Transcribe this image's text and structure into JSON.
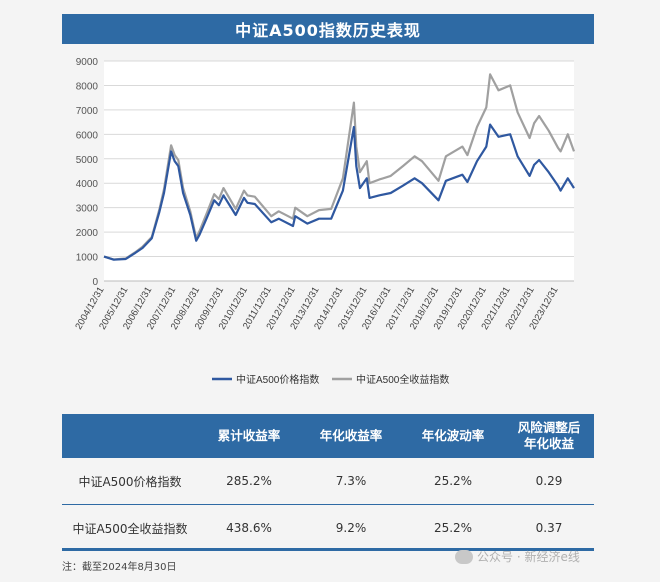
{
  "title": "中证A500指数历史表现",
  "chart_data": {
    "type": "line",
    "y_ticks": [
      "9000",
      "8000",
      "7000",
      "6000",
      "5000",
      "4000",
      "3000",
      "2000",
      "1000",
      "0"
    ],
    "ylim": [
      0,
      9000
    ],
    "grid": true,
    "legend_position": "bottom",
    "categories": [
      "2004/12/31",
      "2005/12/31",
      "2006/12/31",
      "2007/12/31",
      "2008/12/31",
      "2009/12/31",
      "2010/12/31",
      "2011/12/31",
      "2012/12/31",
      "2013/12/31",
      "2014/12/31",
      "2015/12/31",
      "2016/12/31",
      "2017/12/31",
      "2018/12/31",
      "2019/12/31",
      "2020/12/31",
      "2021/12/31",
      "2022/12/31",
      "2023/12/31"
    ],
    "x_span": [
      2004.99,
      2024.66
    ],
    "series": [
      {
        "name": "中证A500价格指数",
        "color": "#2f58a0",
        "points": [
          [
            2004.99,
            1000
          ],
          [
            2005.4,
            870
          ],
          [
            2005.9,
            900
          ],
          [
            2006.3,
            1150
          ],
          [
            2006.6,
            1350
          ],
          [
            2006.99,
            1750
          ],
          [
            2007.3,
            2800
          ],
          [
            2007.5,
            3600
          ],
          [
            2007.8,
            5300
          ],
          [
            2007.95,
            4900
          ],
          [
            2008.1,
            4700
          ],
          [
            2008.3,
            3600
          ],
          [
            2008.6,
            2700
          ],
          [
            2008.85,
            1650
          ],
          [
            2008.99,
            1900
          ],
          [
            2009.3,
            2600
          ],
          [
            2009.6,
            3300
          ],
          [
            2009.8,
            3100
          ],
          [
            2009.99,
            3500
          ],
          [
            2010.5,
            2700
          ],
          [
            2010.85,
            3400
          ],
          [
            2010.99,
            3200
          ],
          [
            2011.3,
            3150
          ],
          [
            2011.99,
            2400
          ],
          [
            2012.3,
            2550
          ],
          [
            2012.9,
            2250
          ],
          [
            2012.99,
            2650
          ],
          [
            2013.5,
            2350
          ],
          [
            2013.99,
            2550
          ],
          [
            2014.5,
            2550
          ],
          [
            2014.99,
            3700
          ],
          [
            2015.45,
            6300
          ],
          [
            2015.55,
            4700
          ],
          [
            2015.7,
            3800
          ],
          [
            2015.99,
            4200
          ],
          [
            2016.1,
            3400
          ],
          [
            2016.5,
            3500
          ],
          [
            2016.99,
            3600
          ],
          [
            2017.5,
            3900
          ],
          [
            2017.99,
            4200
          ],
          [
            2018.3,
            4000
          ],
          [
            2018.99,
            3300
          ],
          [
            2019.3,
            4100
          ],
          [
            2019.99,
            4350
          ],
          [
            2020.2,
            4050
          ],
          [
            2020.6,
            4900
          ],
          [
            2020.99,
            5500
          ],
          [
            2021.15,
            6400
          ],
          [
            2021.5,
            5900
          ],
          [
            2021.99,
            6000
          ],
          [
            2022.3,
            5100
          ],
          [
            2022.8,
            4300
          ],
          [
            2022.99,
            4750
          ],
          [
            2023.2,
            4950
          ],
          [
            2023.6,
            4450
          ],
          [
            2023.99,
            3900
          ],
          [
            2024.1,
            3700
          ],
          [
            2024.4,
            4200
          ],
          [
            2024.66,
            3800
          ]
        ]
      },
      {
        "name": "中证A500全收益指数",
        "color": "#a0a0a0",
        "points": [
          [
            2004.99,
            1000
          ],
          [
            2005.4,
            880
          ],
          [
            2005.9,
            920
          ],
          [
            2006.3,
            1180
          ],
          [
            2006.6,
            1400
          ],
          [
            2006.99,
            1800
          ],
          [
            2007.3,
            2900
          ],
          [
            2007.5,
            3750
          ],
          [
            2007.8,
            5550
          ],
          [
            2007.95,
            5150
          ],
          [
            2008.1,
            4950
          ],
          [
            2008.3,
            3800
          ],
          [
            2008.6,
            2850
          ],
          [
            2008.85,
            1750
          ],
          [
            2008.99,
            2050
          ],
          [
            2009.3,
            2800
          ],
          [
            2009.6,
            3550
          ],
          [
            2009.8,
            3350
          ],
          [
            2009.99,
            3800
          ],
          [
            2010.5,
            2950
          ],
          [
            2010.85,
            3700
          ],
          [
            2010.99,
            3500
          ],
          [
            2011.3,
            3450
          ],
          [
            2011.99,
            2650
          ],
          [
            2012.3,
            2850
          ],
          [
            2012.9,
            2550
          ],
          [
            2012.99,
            3000
          ],
          [
            2013.5,
            2650
          ],
          [
            2013.99,
            2900
          ],
          [
            2014.5,
            2950
          ],
          [
            2014.99,
            4200
          ],
          [
            2015.45,
            7300
          ],
          [
            2015.55,
            5500
          ],
          [
            2015.7,
            4450
          ],
          [
            2015.99,
            4900
          ],
          [
            2016.1,
            4000
          ],
          [
            2016.5,
            4150
          ],
          [
            2016.99,
            4300
          ],
          [
            2017.5,
            4700
          ],
          [
            2017.99,
            5100
          ],
          [
            2018.3,
            4900
          ],
          [
            2018.99,
            4100
          ],
          [
            2019.3,
            5100
          ],
          [
            2019.99,
            5500
          ],
          [
            2020.2,
            5150
          ],
          [
            2020.6,
            6300
          ],
          [
            2020.99,
            7100
          ],
          [
            2021.15,
            8450
          ],
          [
            2021.5,
            7800
          ],
          [
            2021.99,
            8000
          ],
          [
            2022.3,
            6900
          ],
          [
            2022.8,
            5850
          ],
          [
            2022.99,
            6450
          ],
          [
            2023.2,
            6750
          ],
          [
            2023.6,
            6150
          ],
          [
            2023.99,
            5450
          ],
          [
            2024.1,
            5300
          ],
          [
            2024.4,
            6000
          ],
          [
            2024.66,
            5300
          ]
        ]
      }
    ]
  },
  "table": {
    "headers": [
      "",
      "累计收益率",
      "年化收益率",
      "年化波动率",
      "风险调整后\n年化收益"
    ],
    "header_risk_line1": "风险调整后",
    "header_risk_line2": "年化收益",
    "rows": [
      [
        "中证A500价格指数",
        "285.2%",
        "7.3%",
        "25.2%",
        "0.29"
      ],
      [
        "中证A500全收益指数",
        "438.6%",
        "9.2%",
        "25.2%",
        "0.37"
      ]
    ]
  },
  "note": "注：截至2024年8月30日",
  "watermark": "公众号 · 新经济e线"
}
